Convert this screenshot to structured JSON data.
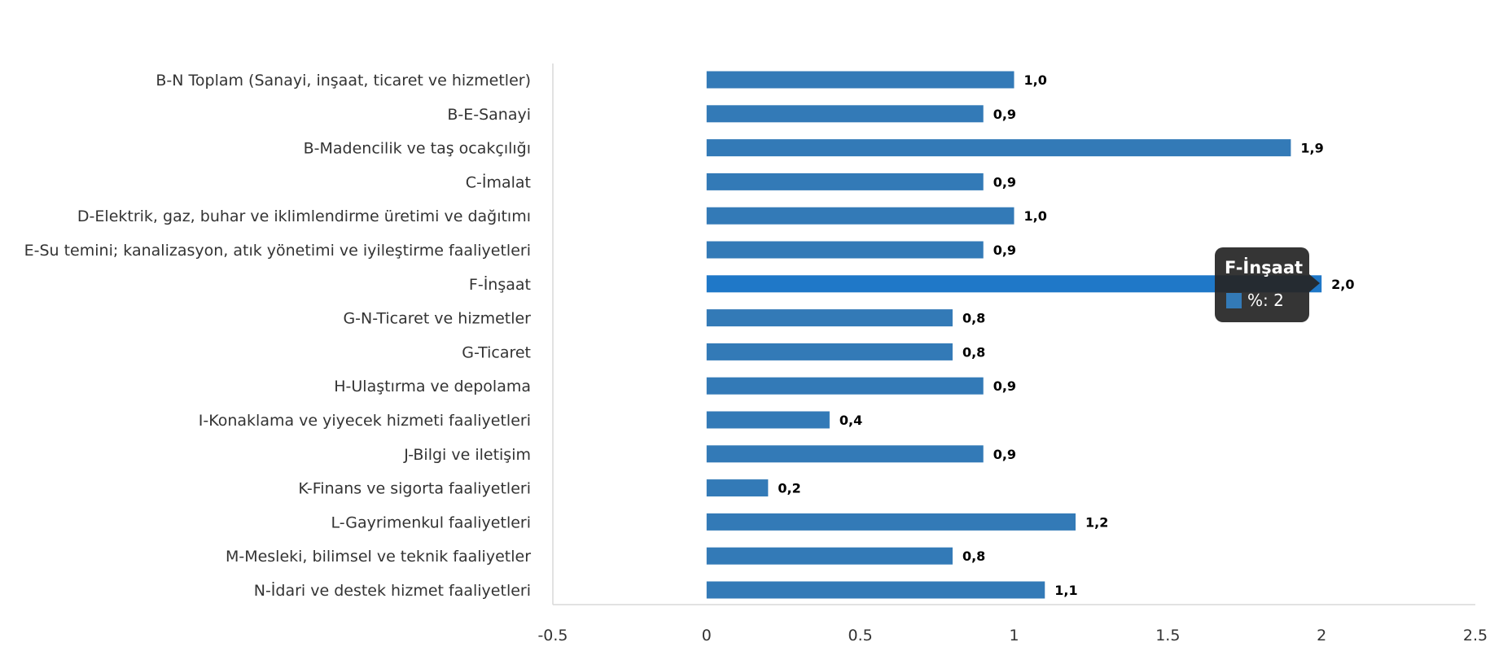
{
  "chart_data": {
    "type": "bar",
    "orientation": "horizontal",
    "title": "",
    "xlabel": "",
    "ylabel": "",
    "xlim": [
      -0.5,
      2.5
    ],
    "x_ticks": [
      "-0.5",
      "0",
      "0.5",
      "1",
      "1.5",
      "2",
      "2.5"
    ],
    "x_tick_values": [
      -0.5,
      0,
      0.5,
      1,
      1.5,
      2,
      2.5
    ],
    "grid": false,
    "legend": "none",
    "bar_color": "#337ab7",
    "highlight_color": "#1f78c8",
    "categories": [
      "B-N Toplam (Sanayi, inşaat, ticaret ve hizmetler)",
      "B-E-Sanayi",
      "B-Madencilik ve taş ocakçılığı",
      "C-İmalat",
      "D-Elektrik, gaz, buhar ve iklimlendirme üretimi ve dağıtımı",
      "E-Su temini; kanalizasyon, atık yönetimi ve iyileştirme faaliyetleri",
      "F-İnşaat",
      "G-N-Ticaret ve hizmetler",
      "G-Ticaret",
      "H-Ulaştırma ve depolama",
      "I-Konaklama ve yiyecek hizmeti faaliyetleri",
      "J-Bilgi ve iletişim",
      "K-Finans ve sigorta faaliyetleri",
      "L-Gayrimenkul faaliyetleri",
      "M-Mesleki, bilimsel ve teknik faaliyetler",
      "N-İdari ve destek hizmet faaliyetleri"
    ],
    "values": [
      1.0,
      0.9,
      1.9,
      0.9,
      1.0,
      0.9,
      2.0,
      0.8,
      0.8,
      0.9,
      0.4,
      0.9,
      0.2,
      1.2,
      0.8,
      1.1
    ],
    "data_labels": [
      "1,0",
      "0,9",
      "1,9",
      "0,9",
      "1,0",
      "0,9",
      "2,0",
      "0,8",
      "0,8",
      "0,9",
      "0,4",
      "0,9",
      "0,2",
      "1,2",
      "0,8",
      "1,1"
    ],
    "highlighted_index": 6,
    "tooltip": {
      "title": "F-İnşaat",
      "value_text": "%: 2",
      "swatch_color": "#337ab7"
    }
  }
}
